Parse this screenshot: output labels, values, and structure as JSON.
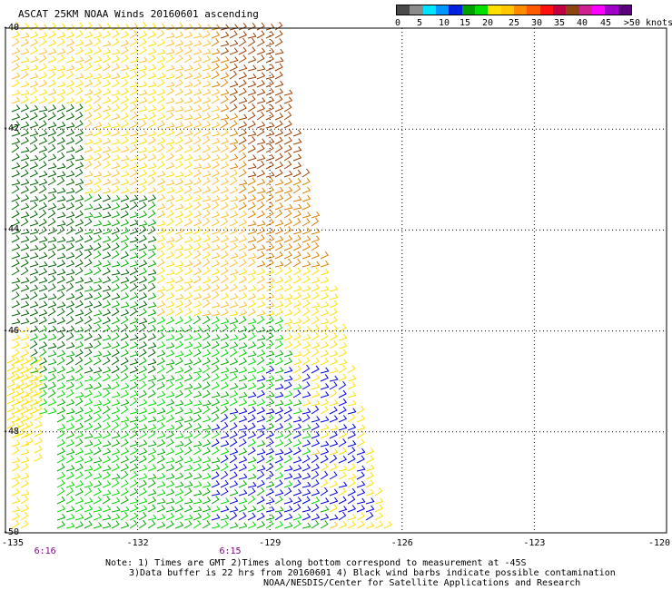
{
  "title": "ASCAT 25KM NOAA Winds 20160601  ascending",
  "colorbar": {
    "colors": [
      "#4a4a4a",
      "#8c8c8c",
      "#00e5ff",
      "#0096ff",
      "#0020e0",
      "#00a000",
      "#00e000",
      "#ffe000",
      "#ffc800",
      "#ff8c00",
      "#ff5a00",
      "#ff1010",
      "#c00040",
      "#8b4513",
      "#d02090",
      "#ff00ff",
      "#a000c8",
      "#5a007a"
    ],
    "labels": [
      "0",
      "5",
      "10",
      "15",
      "20",
      "25",
      "30",
      "35",
      "40",
      "45",
      ">50 knots"
    ]
  },
  "lat_labels": [
    "-40",
    "-42",
    "-44",
    "-46",
    "-48",
    "-50"
  ],
  "lon_labels": [
    "-135",
    "-132",
    "-129",
    "-126",
    "-123",
    "-120"
  ],
  "time_labels": [
    "6:16",
    "6:15"
  ],
  "note": {
    "line1": "Note: 1) Times are GMT 2)Times along bottom correspond to measurement at -45S",
    "line2": "3)Data buffer is 22 hrs from 20160601 4) Black wind barbs indicate possible contamination",
    "line3": "NOAA/NESDIS/Center for Satellite Applications and Research"
  },
  "map": {
    "lon_range": [
      -135,
      -120
    ],
    "lat_range": [
      -50,
      -40
    ],
    "speed_scale_knots": [
      0,
      5,
      10,
      15,
      20,
      25,
      30,
      35,
      40,
      45,
      50
    ],
    "speed_colors": {
      "dark_green": "#006400",
      "green": "#00b000",
      "bright_green": "#00e000",
      "blue": "#0000e0",
      "yellow": "#ffe000",
      "light_orange": "#ffc030",
      "orange": "#e08000",
      "brown": "#a04000"
    }
  }
}
